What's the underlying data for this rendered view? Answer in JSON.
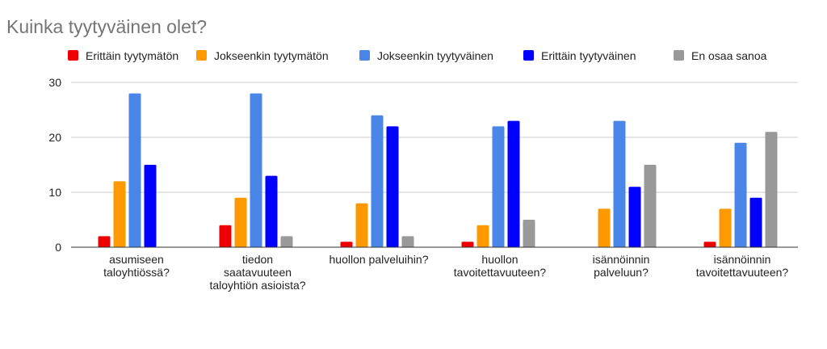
{
  "chart_data": {
    "type": "bar",
    "title": "Kuinka tyytyväinen olet?",
    "categories": [
      [
        "asumiseen",
        "taloyhtiössä?"
      ],
      [
        "tiedon",
        "saatavuuteen",
        "taloyhtiön asioista?"
      ],
      [
        "huollon palveluihin?"
      ],
      [
        "huollon",
        "tavoitettavuuteen?"
      ],
      [
        "isännöinnin",
        "palveluun?"
      ],
      [
        "isännöinnin",
        "tavoitettavuuteen?"
      ]
    ],
    "series": [
      {
        "name": "Erittäin tyytymätön",
        "color": "#ee0000",
        "values": [
          2,
          4,
          1,
          1,
          0,
          1
        ]
      },
      {
        "name": "Jokseenkin tyytymätön",
        "color": "#ff9900",
        "values": [
          12,
          9,
          8,
          4,
          7,
          7
        ]
      },
      {
        "name": "Jokseenkin tyytyväinen",
        "color": "#4a86e8",
        "values": [
          28,
          28,
          24,
          22,
          23,
          19
        ]
      },
      {
        "name": "Erittäin tyytyväinen",
        "color": "#0000ff",
        "values": [
          15,
          13,
          22,
          23,
          11,
          9
        ]
      },
      {
        "name": "En osaa sanoa",
        "color": "#999999",
        "values": [
          0,
          2,
          2,
          5,
          15,
          21
        ]
      }
    ],
    "yticks": [
      0,
      10,
      20,
      30
    ],
    "ylim": [
      0,
      30
    ],
    "grid": true,
    "legend_position": "top-left",
    "xlabel": "",
    "ylabel": ""
  }
}
